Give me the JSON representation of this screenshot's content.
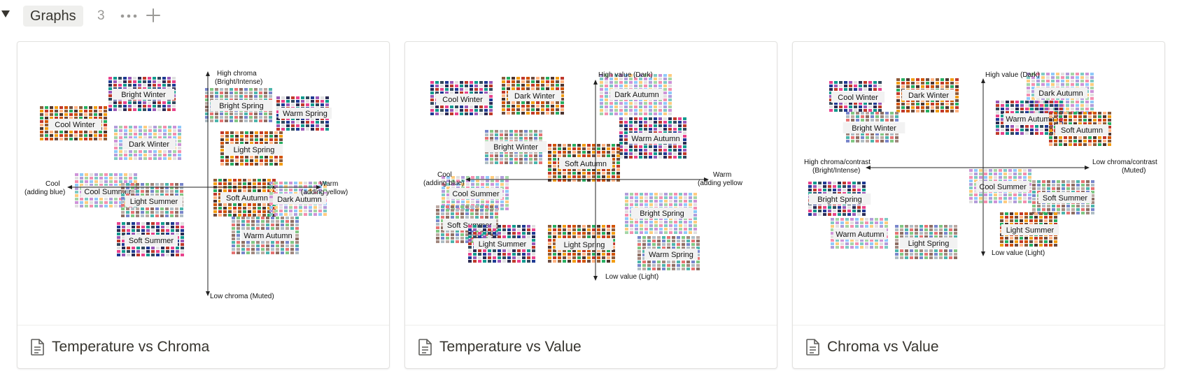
{
  "group": {
    "title": "Graphs",
    "count": "3",
    "more_icon": "more-horizontal-icon",
    "add_icon": "plus-icon"
  },
  "cards": [
    {
      "title": "Temperature vs Chroma",
      "icon": "page-icon",
      "axes": {
        "top": [
          "High chroma",
          "(Bright/Intense)"
        ],
        "bottom": [
          "Low chroma (Muted)"
        ],
        "left": [
          "Cool",
          "(adding blue)"
        ],
        "right": [
          "Warm",
          "(adding yellow)"
        ]
      },
      "seasons": [
        "Bright Winter",
        "Cool Winter",
        "Dark Winter",
        "Bright Spring",
        "Warm Spring",
        "Light Spring",
        "Cool Summer",
        "Light Summer",
        "Soft Summer",
        "Soft Autumn",
        "Dark Autumn",
        "Warm Autumn"
      ]
    },
    {
      "title": "Temperature vs Value",
      "icon": "page-icon",
      "axes": {
        "top": [
          "High value (Dark)"
        ],
        "bottom": [
          "Low value (Light)"
        ],
        "left": [
          "Cool",
          "(adding blue)"
        ],
        "right": [
          "Warm",
          "(adding yellow"
        ]
      },
      "seasons": [
        "Cool Winter",
        "Dark Winter",
        "Dark Autumn",
        "Bright Winter",
        "Warm Autumn",
        "Soft Autumn",
        "Cool Summer",
        "Soft Summer",
        "Light Summer",
        "Light Spring",
        "Bright Spring",
        "Warm Spring"
      ]
    },
    {
      "title": "Chroma vs Value",
      "icon": "page-icon",
      "axes": {
        "top": [
          "High value (Dark)"
        ],
        "bottom": [
          "Low value (Light)"
        ],
        "left": [
          "High chroma/contrast",
          "(Bright/Intense)"
        ],
        "right": [
          "Low chroma/contrast",
          "(Muted)"
        ]
      },
      "seasons": [
        "Cool Winter",
        "Dark Winter",
        "Dark Autumn",
        "Bright Winter",
        "Warm Autumn",
        "Soft Autumn",
        "Cool Summer",
        "Soft Summer",
        "Bright Spring",
        "Light Summer",
        "Warm Autumn",
        "Light Spring"
      ]
    }
  ]
}
